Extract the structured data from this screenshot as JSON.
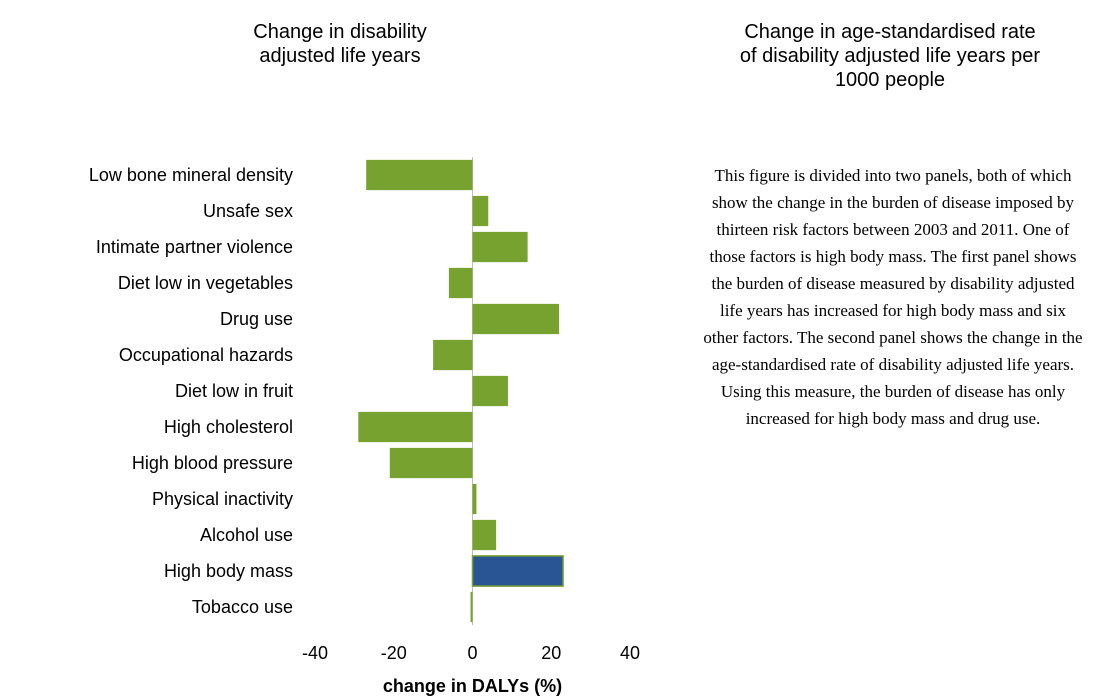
{
  "left_panel": {
    "title_line1": "Change in disability",
    "title_line2": "adjusted life years"
  },
  "right_panel": {
    "title_line1": "Change in age-standardised rate",
    "title_line2": "of disability adjusted life years per",
    "title_line3": "1000 people",
    "description": "This figure is divided into two panels, both of which show the change in the burden of disease imposed by thirteen risk factors between 2003 and 2011. One of those factors is high body mass. The first panel shows the burden of disease measured by disability adjusted life years has increased for high body mass and six other factors. The second panel shows the change in the age-standardised rate of disability adjusted life years. Using this measure, the burden of disease has only increased for high body mass and drug use."
  },
  "colors": {
    "default_bar": "#77a22f",
    "highlight_bar": "#2a5595"
  },
  "chart_data": {
    "type": "bar",
    "orientation": "horizontal",
    "categories": [
      "Low bone mineral density",
      "Unsafe sex",
      "Intimate partner violence",
      "Diet low in vegetables",
      "Drug use",
      "Occupational hazards",
      "Diet low in fruit",
      "High cholesterol",
      "High blood pressure",
      "Physical inactivity",
      "Alcohol use",
      "High body mass",
      "Tobacco use"
    ],
    "values": [
      -27,
      4,
      14,
      -6,
      22,
      -10,
      9,
      -29,
      -21,
      1,
      6,
      23,
      -0.5
    ],
    "highlight": "High body mass",
    "xlim": [
      -40,
      40
    ],
    "xticks": [
      -40,
      -20,
      0,
      20,
      40
    ],
    "xlabel": "change in DALYs (%)",
    "grid": false
  }
}
